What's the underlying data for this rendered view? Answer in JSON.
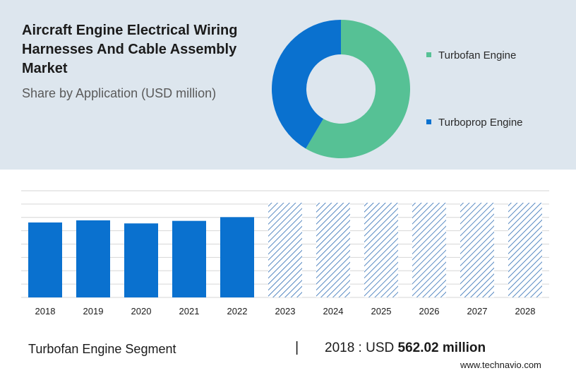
{
  "header": {
    "title": "Aircraft Engine Electrical Wiring Harnesses And Cable Assembly Market",
    "subtitle": "Share by Application (USD million)"
  },
  "chart_data": [
    {
      "type": "pie",
      "variant": "donut",
      "slices": [
        {
          "label": "Turbofan Engine",
          "share": 0.585,
          "color": "#56c195"
        },
        {
          "label": "Turboprop Engine",
          "share": 0.415,
          "color": "#0a71cf"
        }
      ],
      "legend_position": "right"
    },
    {
      "type": "bar",
      "categories": [
        "2018",
        "2019",
        "2020",
        "2021",
        "2022",
        "2023",
        "2024",
        "2025",
        "2026",
        "2027",
        "2028"
      ],
      "values": [
        562.02,
        578,
        555,
        574,
        602,
        null,
        null,
        null,
        null,
        null,
        null
      ],
      "forecast_categories": [
        "2023",
        "2024",
        "2025",
        "2026",
        "2027",
        "2028"
      ],
      "forecast_pattern": "hatched",
      "bar_color": "#0a71cf",
      "hatch_color": "#2f6db4",
      "ylim": [
        0,
        800
      ],
      "forecast_value": 710,
      "grid": true,
      "xlabel": "",
      "ylabel": ""
    }
  ],
  "footer": {
    "segment": "Turbofan Engine Segment",
    "separator": "|",
    "year_text": "2018 : USD ",
    "value_text": "562.02 million",
    "site": "www.technavio.com"
  }
}
